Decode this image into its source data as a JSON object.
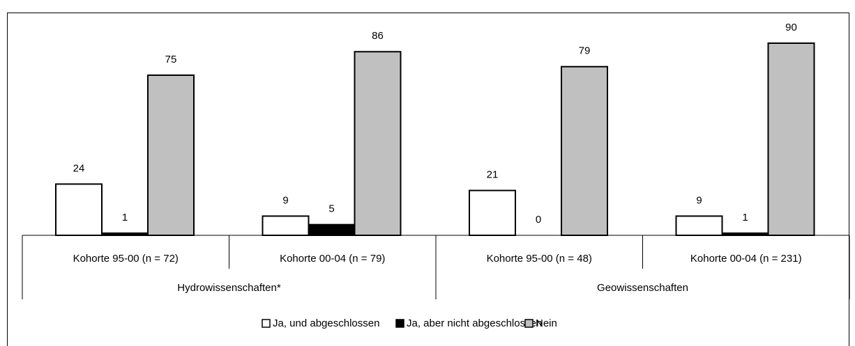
{
  "chart_data": {
    "type": "bar",
    "categories": [
      "Kohorte 95-00 (n = 72)",
      "Kohorte 00-04 (n = 79)",
      "Kohorte 95-00 (n = 48)",
      "Kohorte 00-04 (n = 231)"
    ],
    "groups": [
      "Hydrowissenschaften*",
      "Geowissenschaften"
    ],
    "series": [
      {
        "name": "Ja, und abgeschlossen",
        "color": "#ffffff",
        "values": [
          24,
          9,
          21,
          9
        ]
      },
      {
        "name": "Ja, aber nicht abgeschlossen",
        "color": "#000000",
        "values": [
          1,
          5,
          0,
          1
        ]
      },
      {
        "name": "Nein",
        "color": "#c0c0c0",
        "values": [
          75,
          86,
          79,
          90
        ]
      }
    ]
  }
}
